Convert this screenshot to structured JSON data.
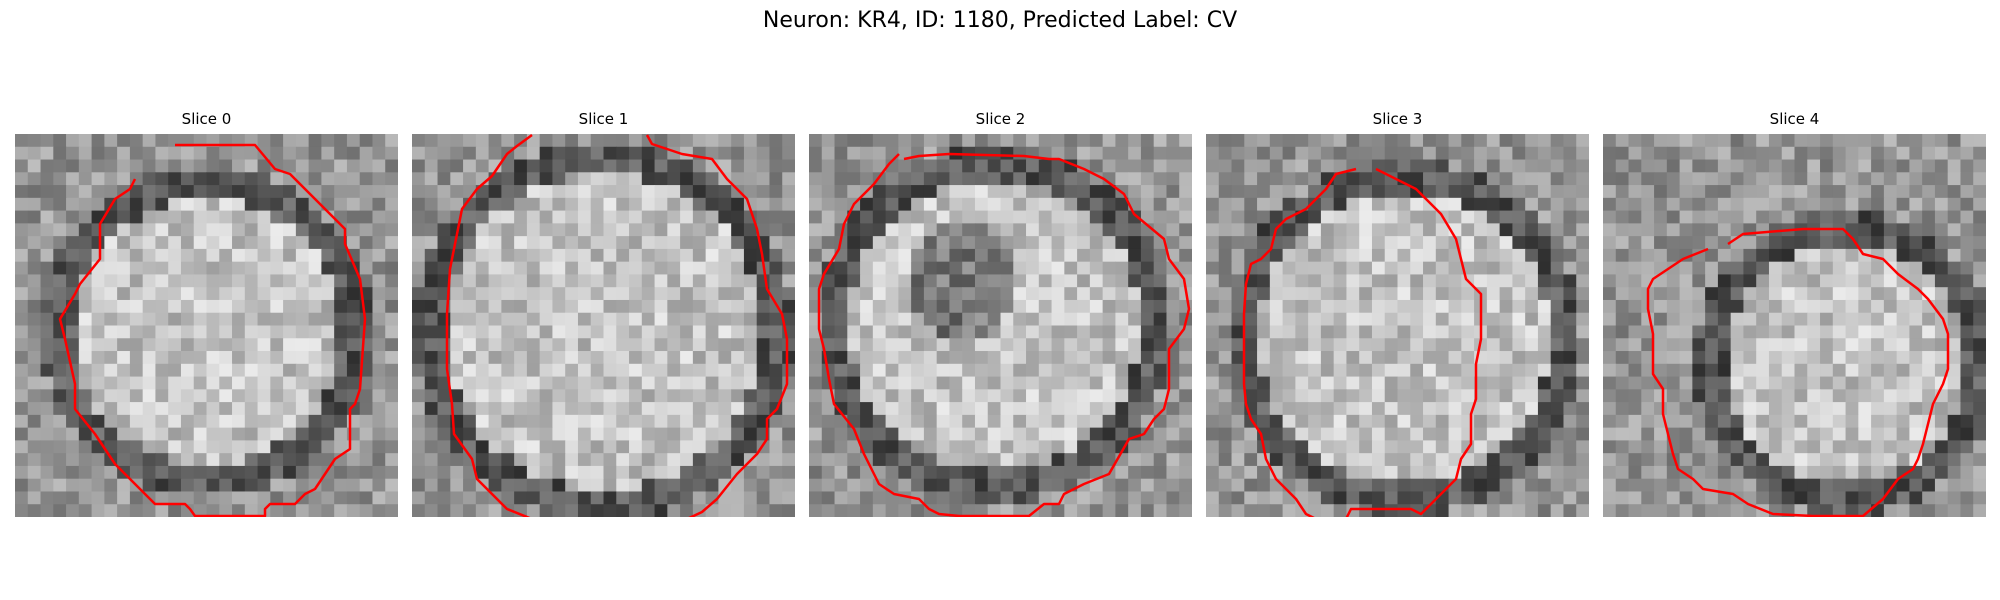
{
  "figure": {
    "title": "Neuron: KR4, ID: 1180, Predicted Label: CV",
    "contour_color": "#ff0000"
  },
  "slices": [
    {
      "title": "Slice 0"
    },
    {
      "title": "Slice 1"
    },
    {
      "title": "Slice 2"
    },
    {
      "title": "Slice 3"
    },
    {
      "title": "Slice 4"
    }
  ]
}
